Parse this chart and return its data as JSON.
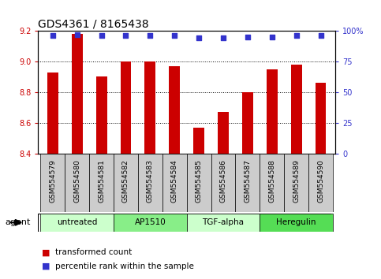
{
  "title": "GDS4361 / 8165438",
  "samples": [
    "GSM554579",
    "GSM554580",
    "GSM554581",
    "GSM554582",
    "GSM554583",
    "GSM554584",
    "GSM554585",
    "GSM554586",
    "GSM554587",
    "GSM554588",
    "GSM554589",
    "GSM554590"
  ],
  "bar_values": [
    8.93,
    9.18,
    8.9,
    9.0,
    9.0,
    8.97,
    8.57,
    8.67,
    8.8,
    8.95,
    8.98,
    8.86
  ],
  "bar_baseline": 8.4,
  "bar_color": "#cc0000",
  "percentile_values": [
    96,
    97,
    96,
    96,
    96,
    96,
    94,
    94,
    95,
    95,
    96,
    96
  ],
  "percentile_color": "#3333cc",
  "ylim_left": [
    8.4,
    9.2
  ],
  "ylim_right": [
    0,
    100
  ],
  "yticks_left": [
    8.4,
    8.6,
    8.8,
    9.0,
    9.2
  ],
  "yticks_right": [
    0,
    25,
    50,
    75,
    100
  ],
  "ytick_labels_right": [
    "0",
    "25",
    "50",
    "75",
    "100%"
  ],
  "groups": [
    {
      "label": "untreated",
      "start": 0,
      "end": 3,
      "color": "#ccffcc"
    },
    {
      "label": "AP1510",
      "start": 3,
      "end": 6,
      "color": "#88ee88"
    },
    {
      "label": "TGF-alpha",
      "start": 6,
      "end": 9,
      "color": "#ccffcc"
    },
    {
      "label": "Heregulin",
      "start": 9,
      "end": 12,
      "color": "#55dd55"
    }
  ],
  "agent_label": "agent",
  "legend_items": [
    {
      "label": "transformed count",
      "color": "#cc0000"
    },
    {
      "label": "percentile rank within the sample",
      "color": "#3333cc"
    }
  ],
  "bar_width": 0.45,
  "title_fontsize": 10,
  "tick_fontsize": 7,
  "label_fontsize": 8,
  "background_color": "#ffffff",
  "plot_bg_color": "#ffffff",
  "grid_color": "#000000",
  "xtick_bg_color": "#cccccc"
}
